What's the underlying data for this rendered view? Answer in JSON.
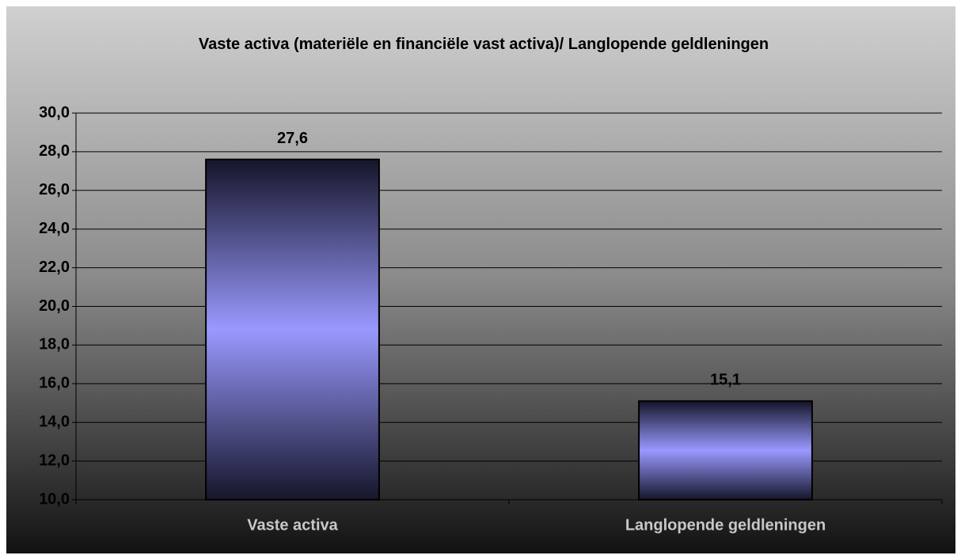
{
  "chart_data": {
    "type": "bar",
    "title": "Vaste activa (materiële en financiële vast activa)/ Langlopende geldleningen",
    "categories": [
      "Vaste activa",
      "Langlopende geldleningen"
    ],
    "values": [
      27.6,
      15.1
    ],
    "value_labels": [
      "27,6",
      "15,1"
    ],
    "color": "#9999ff",
    "ylim": [
      10,
      30
    ],
    "yticks": [
      {
        "value": 10,
        "label": "10,0"
      },
      {
        "value": 12,
        "label": "12,0"
      },
      {
        "value": 14,
        "label": "14,0"
      },
      {
        "value": 16,
        "label": "16,0"
      },
      {
        "value": 18,
        "label": "18,0"
      },
      {
        "value": 20,
        "label": "20,0"
      },
      {
        "value": 22,
        "label": "22,0"
      },
      {
        "value": 24,
        "label": "24,0"
      },
      {
        "value": 26,
        "label": "26,0"
      },
      {
        "value": 28,
        "label": "28,0"
      },
      {
        "value": 30,
        "label": "30,0"
      }
    ],
    "grid": true
  }
}
